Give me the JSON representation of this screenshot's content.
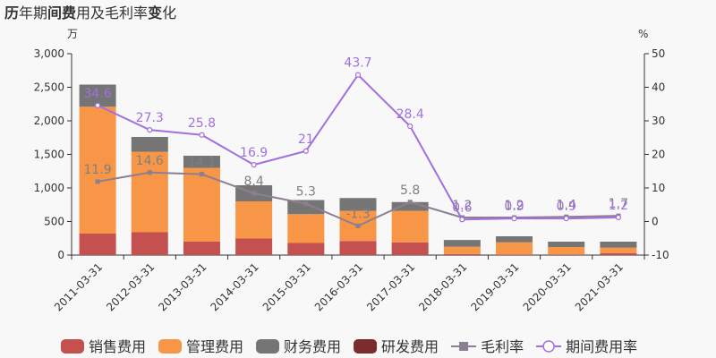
{
  "chart_data": {
    "type": "bar+line",
    "title_parts": [
      {
        "text": "历",
        "bold": true
      },
      {
        "text": "年期",
        "bold": false
      },
      {
        "text": "间费",
        "bold": true
      },
      {
        "text": "用及毛利率",
        "bold": false
      },
      {
        "text": "变",
        "bold": true
      },
      {
        "text": "化",
        "bold": false
      }
    ],
    "y_left_unit": "万",
    "y_right_unit": "%",
    "y_left_range": [
      0,
      3000
    ],
    "y_left_ticks": [
      "0",
      "500",
      "1,000",
      "1,500",
      "2,000",
      "2,500",
      "3,000"
    ],
    "y_right_range": [
      -10,
      50
    ],
    "y_right_ticks": [
      "-10",
      "0",
      "10",
      "20",
      "30",
      "40",
      "50"
    ],
    "categories": [
      "2011-03-31",
      "2012-03-31",
      "2013-03-31",
      "2014-03-31",
      "2015-03-31",
      "2016-03-31",
      "2017-03-31",
      "2018-03-31",
      "2019-03-31",
      "2020-03-31",
      "2021-03-31"
    ],
    "bar_series": [
      {
        "name": "销售费用",
        "color": "#c4504f",
        "values": [
          320,
          340,
          200,
          250,
          180,
          210,
          190,
          15,
          10,
          10,
          30
        ]
      },
      {
        "name": "管理费用",
        "color": "#f79646",
        "values": [
          1890,
          1200,
          1100,
          550,
          430,
          450,
          470,
          110,
          180,
          110,
          80
        ]
      },
      {
        "name": "财务费用",
        "color": "#757575",
        "values": [
          330,
          220,
          180,
          240,
          210,
          190,
          130,
          100,
          90,
          80,
          90
        ]
      },
      {
        "name": "研发费用",
        "color": "#7b2c2b",
        "values": [
          0,
          0,
          0,
          0,
          0,
          0,
          0,
          0,
          0,
          0,
          0
        ]
      }
    ],
    "line_series": [
      {
        "name": "毛利率",
        "color": "#8c7f92",
        "values": [
          11.9,
          14.6,
          14.1,
          8.4,
          5.3,
          -1.3,
          5.8,
          1.2,
          1.2,
          1.4,
          1.7
        ],
        "labels": [
          "11.9",
          "14.6",
          "14.1",
          "8.4",
          "5.3",
          "-1.3",
          "5.8",
          "1.2",
          "1.2",
          "1.4",
          "1.7"
        ]
      },
      {
        "name": "期间费用率",
        "color": "#a270df",
        "values": [
          34.6,
          27.3,
          25.8,
          16.9,
          21,
          43.7,
          28.4,
          0.6,
          0.9,
          0.9,
          1.2
        ],
        "labels": [
          "34.6",
          "27.3",
          "25.8",
          "16.9",
          "21",
          "43.7",
          "28.4",
          "0.6",
          "0.9",
          "0.9",
          "1.2"
        ]
      }
    ],
    "legend": [
      {
        "name": "销售费用",
        "kind": "bar",
        "color": "#c4504f"
      },
      {
        "name": "管理费用",
        "kind": "bar",
        "color": "#f79646"
      },
      {
        "name": "财务费用",
        "kind": "bar",
        "color": "#757575"
      },
      {
        "name": "研发费用",
        "kind": "bar",
        "color": "#7b2c2b"
      },
      {
        "name": "毛利率",
        "kind": "line-square",
        "color": "#8c7f92"
      },
      {
        "name": "期间费用率",
        "kind": "line-circle",
        "color": "#a270df"
      }
    ],
    "legend_placement": "bottom",
    "grid": false
  }
}
